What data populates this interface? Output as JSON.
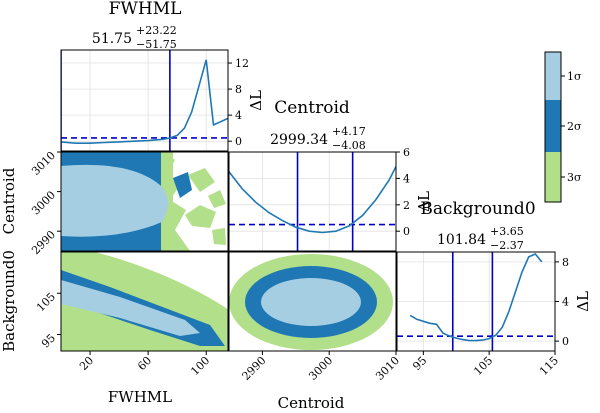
{
  "colors": {
    "sigma1": "#a6cee3",
    "sigma2": "#1f78b4",
    "sigma3": "#b2df8a",
    "curve": "#1f78b4",
    "marker": "#0000cc",
    "grid": "#e0e0e0",
    "frame": "#000000"
  },
  "legend": {
    "labels": [
      "1σ",
      "2σ",
      "3σ"
    ]
  },
  "chart_data": {
    "type": "corner",
    "parameters": [
      {
        "name": "FWHML",
        "best": "51.75",
        "plus": "+23.22",
        "minus": "−51.75",
        "range": [
          0,
          115
        ],
        "ticks": [
          20,
          60,
          100
        ],
        "interval": [
          0,
          74.97
        ],
        "profile": {
          "ylabel": "ΔL",
          "yrange": [
            -1.5,
            14
          ],
          "yticks": [
            0,
            4,
            8,
            12
          ],
          "threshold": 0.5,
          "x": [
            0,
            10,
            20,
            30,
            40,
            50,
            60,
            70,
            75,
            80,
            85,
            90,
            95,
            100,
            105,
            110,
            115
          ],
          "y": [
            -0.1,
            -0.3,
            -0.3,
            -0.2,
            -0.1,
            0,
            0.1,
            0.3,
            0.5,
            0.9,
            2.0,
            4.5,
            8.5,
            12.5,
            2.5,
            3.0,
            3.5
          ]
        }
      },
      {
        "name": "Centroid",
        "best": "2999.34",
        "plus": "+4.17",
        "minus": "−4.08",
        "range": [
          2985,
          3010
        ],
        "ticks": [
          2990,
          3000,
          3010
        ],
        "interval": [
          2995.26,
          3003.51
        ],
        "profile": {
          "ylabel": "ΔL",
          "yrange": [
            -1.5,
            6
          ],
          "yticks": [
            0,
            2,
            4,
            6
          ],
          "threshold": 0.5,
          "x": [
            2985,
            2987,
            2989,
            2991,
            2993,
            2995,
            2997,
            2999,
            3001,
            3003,
            3005,
            3007,
            3009,
            3010
          ],
          "y": [
            4.5,
            3.2,
            2.2,
            1.4,
            0.8,
            0.3,
            0.0,
            -0.1,
            0.0,
            0.4,
            1.2,
            2.4,
            3.9,
            4.9
          ]
        }
      },
      {
        "name": "Background0",
        "best": "101.84",
        "plus": "+3.65",
        "minus": "−2.37",
        "range": [
          91,
          115
        ],
        "ticks": [
          95,
          105,
          115
        ],
        "interval": [
          99.47,
          105.49
        ],
        "profile": {
          "ylabel": "ΔL",
          "yrange": [
            -1,
            9
          ],
          "yticks": [
            0,
            4,
            8
          ],
          "threshold": 0.5,
          "x": [
            93,
            94,
            95,
            96,
            97,
            98,
            99,
            100,
            101,
            102,
            103,
            104,
            105,
            106,
            107,
            108,
            109,
            110,
            111,
            112,
            113
          ],
          "y": [
            2.6,
            2.2,
            2.0,
            1.8,
            1.7,
            0.8,
            0.5,
            0.3,
            0.15,
            0.05,
            0.05,
            0.1,
            0.25,
            0.6,
            1.4,
            3.0,
            5.0,
            7.0,
            8.5,
            8.8,
            8.0
          ]
        }
      }
    ],
    "pairs": [
      {
        "x": "FWHML",
        "y": "Centroid",
        "shape": "fwhm-centroid"
      },
      {
        "x": "FWHML",
        "y": "Background0",
        "shape": "fwhm-background"
      },
      {
        "x": "Centroid",
        "y": "Background0",
        "shape": "centroid-background"
      }
    ],
    "grid": true
  }
}
